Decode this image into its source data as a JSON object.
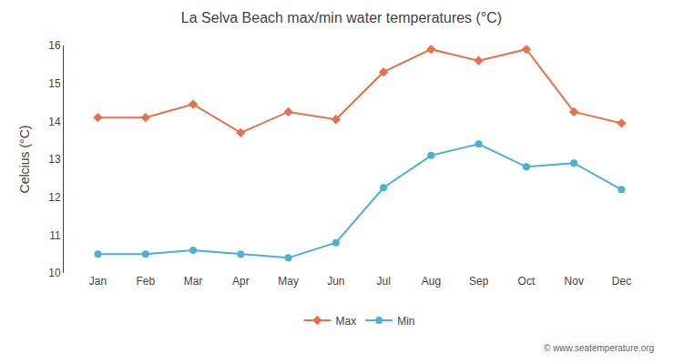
{
  "chart_data": {
    "type": "line",
    "title": "La Selva Beach max/min water temperatures (°C)",
    "ylabel": "Celcius (°C)",
    "categories": [
      "Jan",
      "Feb",
      "Mar",
      "Apr",
      "May",
      "Jun",
      "Jul",
      "Aug",
      "Sep",
      "Oct",
      "Nov",
      "Dec"
    ],
    "series": [
      {
        "name": "Max",
        "color": "#e8704a",
        "marker": "diamond",
        "values": [
          14.1,
          14.1,
          14.45,
          13.7,
          14.25,
          14.05,
          15.3,
          15.9,
          15.6,
          15.9,
          14.25,
          13.95
        ]
      },
      {
        "name": "Min",
        "color": "#4ab0d4",
        "marker": "circle",
        "values": [
          10.5,
          10.5,
          10.6,
          10.5,
          10.4,
          10.8,
          12.25,
          13.1,
          13.4,
          12.8,
          12.9,
          12.2
        ]
      }
    ],
    "ylim": [
      10.0,
      16.0
    ],
    "yticks": [
      10,
      11,
      12,
      13,
      14,
      15,
      16
    ],
    "grid": false,
    "legend": "bottom",
    "annotations": [
      "© www.seatemperature.org"
    ]
  }
}
